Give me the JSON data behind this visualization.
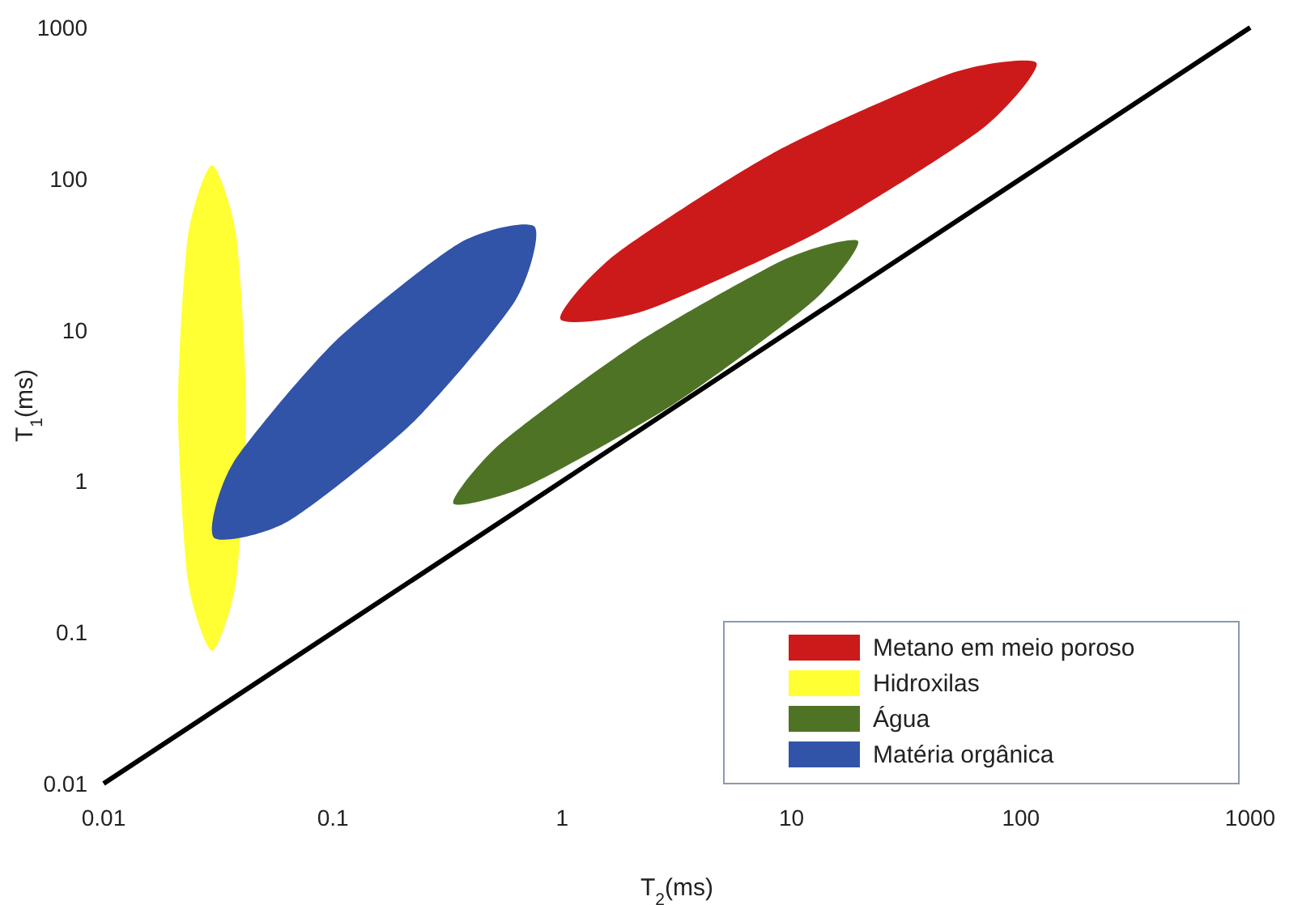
{
  "chart_data": {
    "type": "area",
    "xlabel": "T$_{2}$(ms)",
    "ylabel": "T$_{1}$(ms)",
    "log": "xy",
    "grid": false,
    "legend": "bottom right",
    "xlim": [
      0.01,
      1000
    ],
    "ylim": [
      0.01,
      1000
    ],
    "xticks": [
      0.01,
      0.1,
      1,
      10,
      100,
      1000
    ],
    "yticks": [
      0.01,
      0.1,
      1,
      10,
      100,
      1000
    ],
    "series": [
      {
        "name": "Metano em meio poroso",
        "color": "#cc1a1a",
        "x": [
          117,
          67.3,
          13.2,
          2.29,
          0.982,
          1.71,
          8.67,
          50.2
        ],
        "values": [
          581,
          212,
          44.8,
          13.4,
          11.8,
          31.7,
          153,
          501
        ]
      },
      {
        "name": "Hidroxilas",
        "color": "#ffff33",
        "x": [
          0.0297,
          0.0379,
          0.0418,
          0.0379,
          0.0297,
          0.0233,
          0.0211,
          0.0233
        ],
        "values": [
          123,
          41.6,
          3.05,
          0.223,
          0.0755,
          0.223,
          3.05,
          41.6
        ]
      },
      {
        "name": "Água",
        "color": "#4e7325",
        "x": [
          19.5,
          12.4,
          3.11,
          0.708,
          0.335,
          0.537,
          2.11,
          9.4
        ],
        "values": [
          38.6,
          15.5,
          3.28,
          0.933,
          0.711,
          1.77,
          8.17,
          29.4
        ]
      },
      {
        "name": "Matéria orgânica",
        "color": "#3153a8",
        "x": [
          0.757,
          0.622,
          0.223,
          0.0638,
          0.0302,
          0.0367,
          0.102,
          0.358
        ],
        "values": [
          48.2,
          15.5,
          2.44,
          0.542,
          0.424,
          1.32,
          8.37,
          37.7
        ]
      },
      {
        "type": "line",
        "color": "#000000",
        "x": [
          0.01,
          1000
        ],
        "values": [
          0.01,
          1000
        ]
      }
    ]
  }
}
